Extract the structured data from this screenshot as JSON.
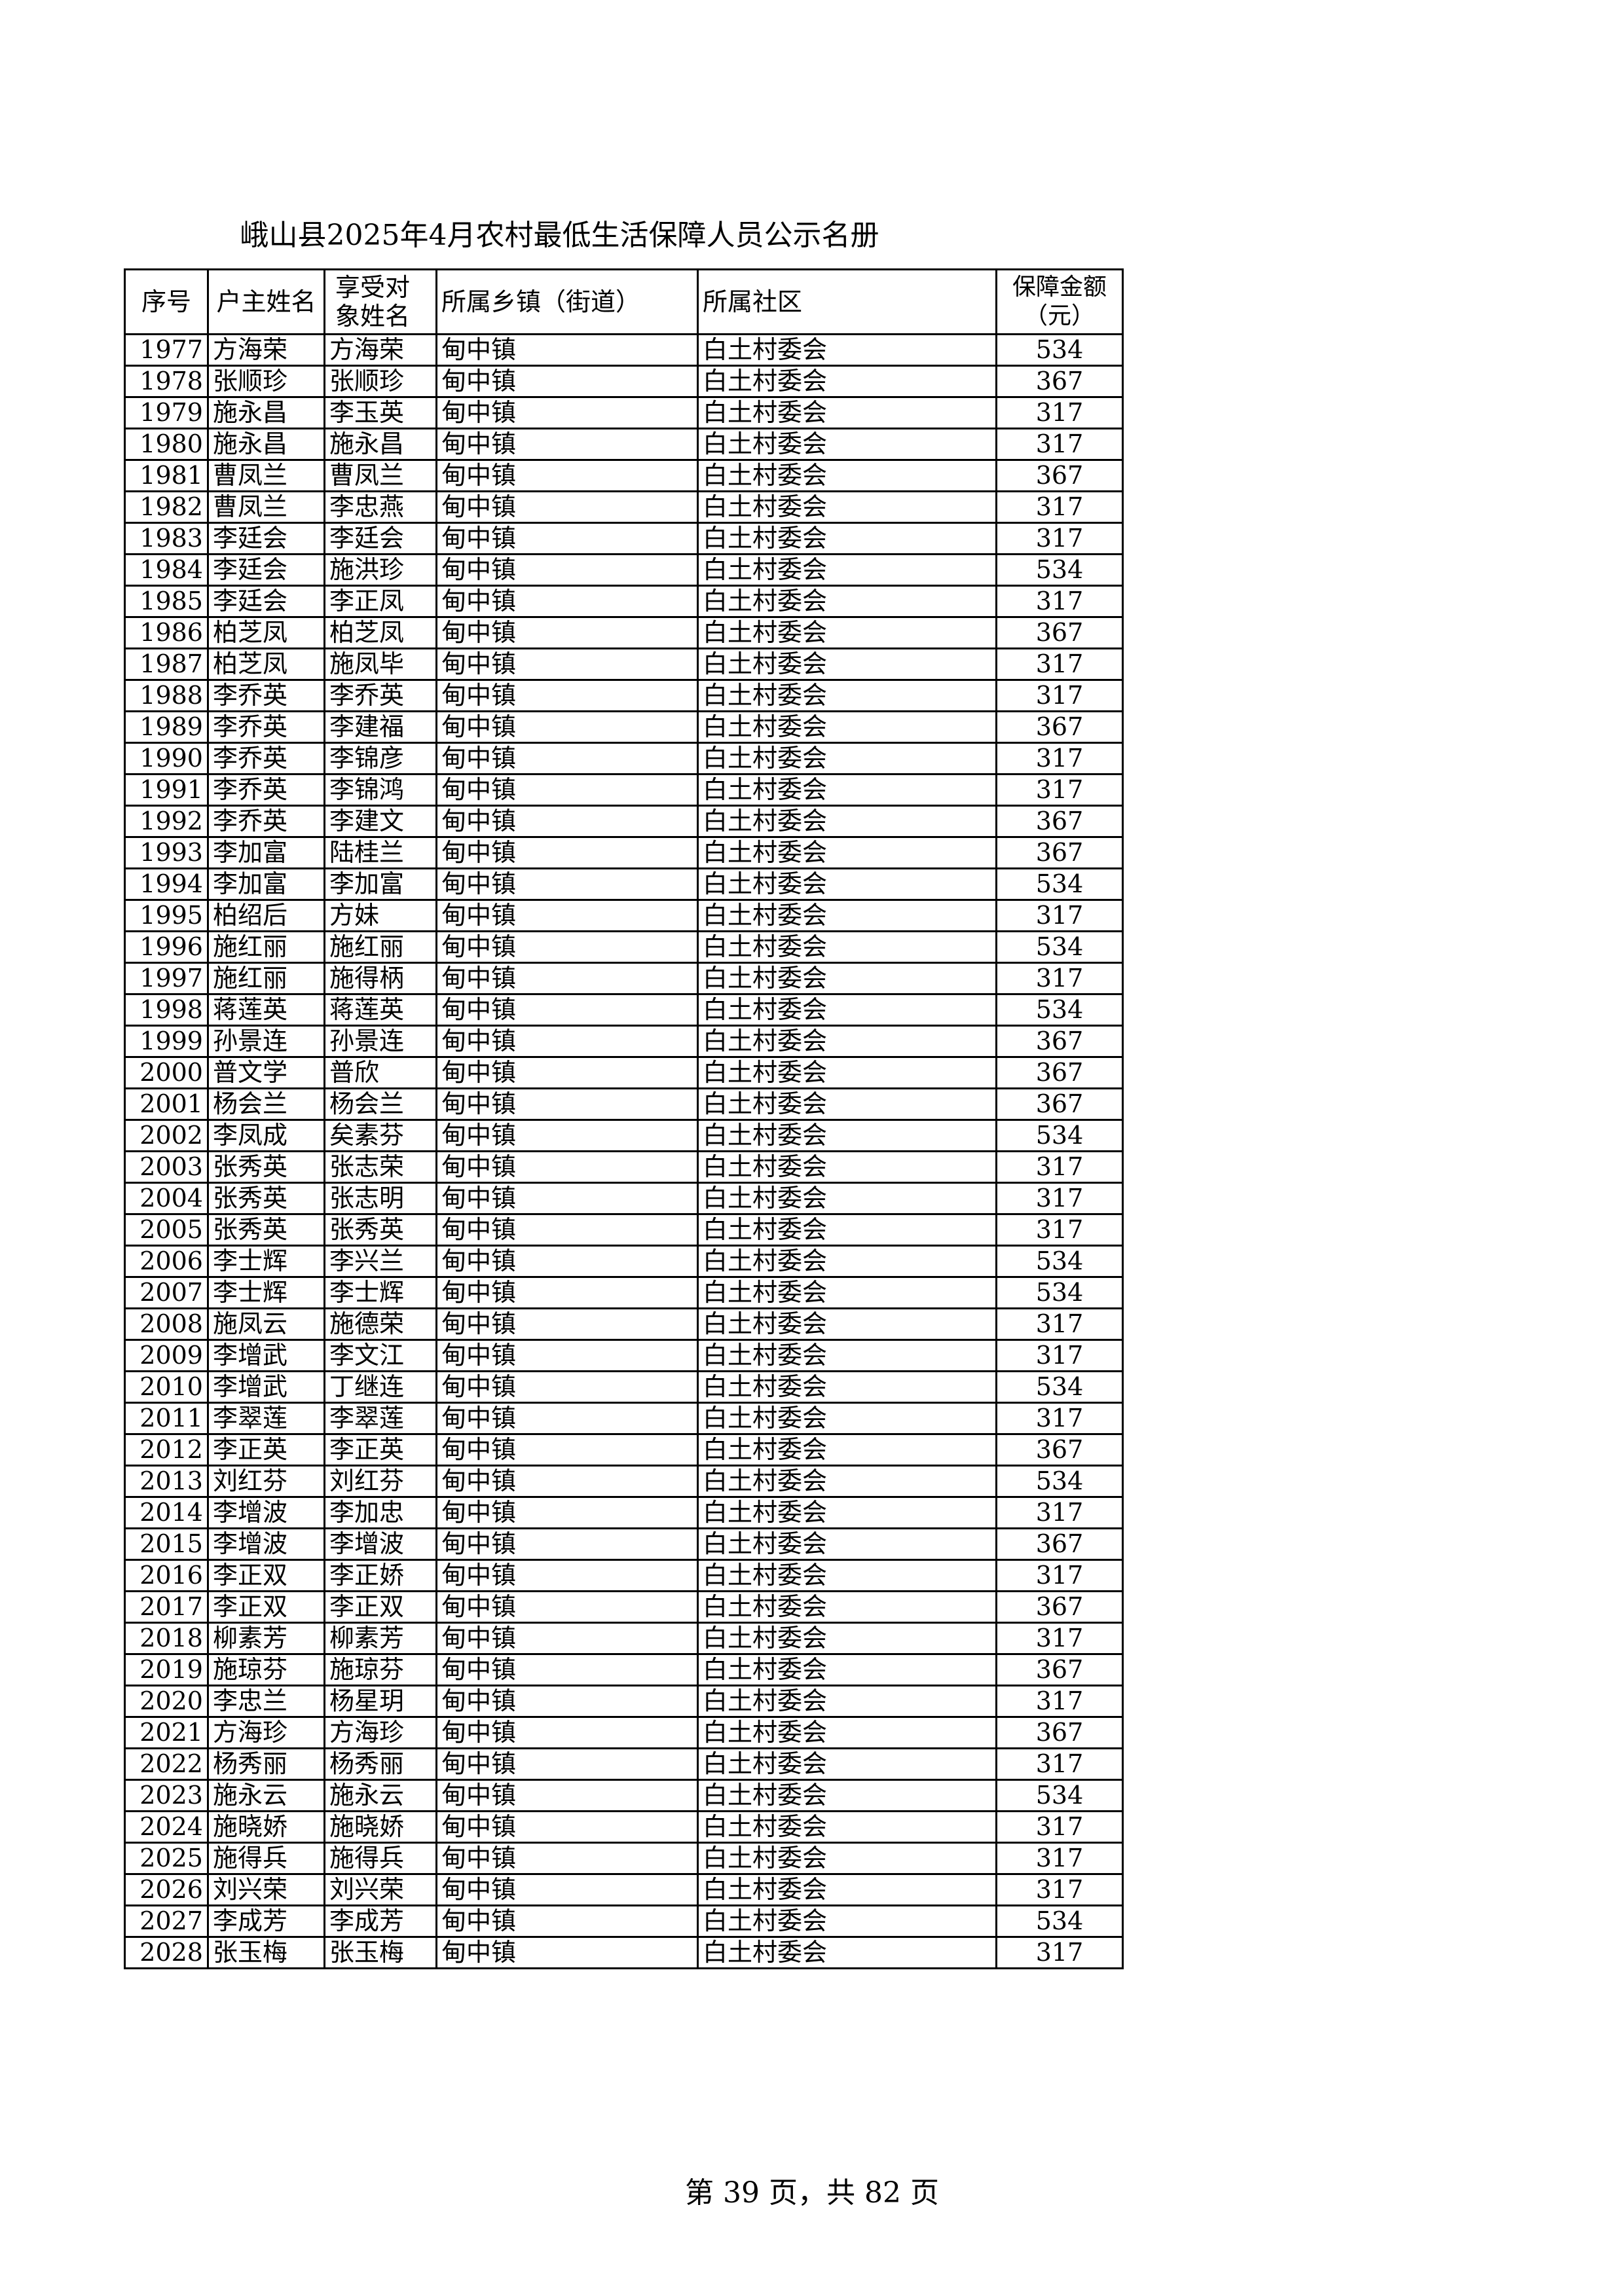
{
  "header": {
    "title": "峨山县2025年4月农村最低生活保障人员公示名册"
  },
  "table": {
    "columns": [
      "序号",
      "户主姓名",
      "享受对象姓名",
      "所属乡镇（街道）",
      "所属社区",
      "保障金额（元）"
    ],
    "rows": [
      [
        1977,
        "方海荣",
        "方海荣",
        "甸中镇",
        "白土村委会",
        534
      ],
      [
        1978,
        "张顺珍",
        "张顺珍",
        "甸中镇",
        "白土村委会",
        367
      ],
      [
        1979,
        "施永昌",
        "李玉英",
        "甸中镇",
        "白土村委会",
        317
      ],
      [
        1980,
        "施永昌",
        "施永昌",
        "甸中镇",
        "白土村委会",
        317
      ],
      [
        1981,
        "曹凤兰",
        "曹凤兰",
        "甸中镇",
        "白土村委会",
        367
      ],
      [
        1982,
        "曹凤兰",
        "李忠燕",
        "甸中镇",
        "白土村委会",
        317
      ],
      [
        1983,
        "李廷会",
        "李廷会",
        "甸中镇",
        "白土村委会",
        317
      ],
      [
        1984,
        "李廷会",
        "施洪珍",
        "甸中镇",
        "白土村委会",
        534
      ],
      [
        1985,
        "李廷会",
        "李正凤",
        "甸中镇",
        "白土村委会",
        317
      ],
      [
        1986,
        "柏芝凤",
        "柏芝凤",
        "甸中镇",
        "白土村委会",
        367
      ],
      [
        1987,
        "柏芝凤",
        "施凤毕",
        "甸中镇",
        "白土村委会",
        317
      ],
      [
        1988,
        "李乔英",
        "李乔英",
        "甸中镇",
        "白土村委会",
        317
      ],
      [
        1989,
        "李乔英",
        "李建福",
        "甸中镇",
        "白土村委会",
        367
      ],
      [
        1990,
        "李乔英",
        "李锦彦",
        "甸中镇",
        "白土村委会",
        317
      ],
      [
        1991,
        "李乔英",
        "李锦鸿",
        "甸中镇",
        "白土村委会",
        317
      ],
      [
        1992,
        "李乔英",
        "李建文",
        "甸中镇",
        "白土村委会",
        367
      ],
      [
        1993,
        "李加富",
        "陆桂兰",
        "甸中镇",
        "白土村委会",
        367
      ],
      [
        1994,
        "李加富",
        "李加富",
        "甸中镇",
        "白土村委会",
        534
      ],
      [
        1995,
        "柏绍后",
        "方妹",
        "甸中镇",
        "白土村委会",
        317
      ],
      [
        1996,
        "施红丽",
        "施红丽",
        "甸中镇",
        "白土村委会",
        534
      ],
      [
        1997,
        "施红丽",
        "施得柄",
        "甸中镇",
        "白土村委会",
        317
      ],
      [
        1998,
        "蒋莲英",
        "蒋莲英",
        "甸中镇",
        "白土村委会",
        534
      ],
      [
        1999,
        "孙景连",
        "孙景连",
        "甸中镇",
        "白土村委会",
        367
      ],
      [
        2000,
        "普文学",
        "普欣",
        "甸中镇",
        "白土村委会",
        367
      ],
      [
        2001,
        "杨会兰",
        "杨会兰",
        "甸中镇",
        "白土村委会",
        367
      ],
      [
        2002,
        "李凤成",
        "矣素芬",
        "甸中镇",
        "白土村委会",
        534
      ],
      [
        2003,
        "张秀英",
        "张志荣",
        "甸中镇",
        "白土村委会",
        317
      ],
      [
        2004,
        "张秀英",
        "张志明",
        "甸中镇",
        "白土村委会",
        317
      ],
      [
        2005,
        "张秀英",
        "张秀英",
        "甸中镇",
        "白土村委会",
        317
      ],
      [
        2006,
        "李士辉",
        "李兴兰",
        "甸中镇",
        "白土村委会",
        534
      ],
      [
        2007,
        "李士辉",
        "李士辉",
        "甸中镇",
        "白土村委会",
        534
      ],
      [
        2008,
        "施凤云",
        "施德荣",
        "甸中镇",
        "白土村委会",
        317
      ],
      [
        2009,
        "李增武",
        "李文江",
        "甸中镇",
        "白土村委会",
        317
      ],
      [
        2010,
        "李增武",
        "丁继连",
        "甸中镇",
        "白土村委会",
        534
      ],
      [
        2011,
        "李翠莲",
        "李翠莲",
        "甸中镇",
        "白土村委会",
        317
      ],
      [
        2012,
        "李正英",
        "李正英",
        "甸中镇",
        "白土村委会",
        367
      ],
      [
        2013,
        "刘红芬",
        "刘红芬",
        "甸中镇",
        "白土村委会",
        534
      ],
      [
        2014,
        "李增波",
        "李加忠",
        "甸中镇",
        "白土村委会",
        317
      ],
      [
        2015,
        "李增波",
        "李增波",
        "甸中镇",
        "白土村委会",
        367
      ],
      [
        2016,
        "李正双",
        "李正娇",
        "甸中镇",
        "白土村委会",
        317
      ],
      [
        2017,
        "李正双",
        "李正双",
        "甸中镇",
        "白土村委会",
        367
      ],
      [
        2018,
        "柳素芳",
        "柳素芳",
        "甸中镇",
        "白土村委会",
        317
      ],
      [
        2019,
        "施琼芬",
        "施琼芬",
        "甸中镇",
        "白土村委会",
        367
      ],
      [
        2020,
        "李忠兰",
        "杨星玥",
        "甸中镇",
        "白土村委会",
        317
      ],
      [
        2021,
        "方海珍",
        "方海珍",
        "甸中镇",
        "白土村委会",
        367
      ],
      [
        2022,
        "杨秀丽",
        "杨秀丽",
        "甸中镇",
        "白土村委会",
        317
      ],
      [
        2023,
        "施永云",
        "施永云",
        "甸中镇",
        "白土村委会",
        534
      ],
      [
        2024,
        "施晓娇",
        "施晓娇",
        "甸中镇",
        "白土村委会",
        317
      ],
      [
        2025,
        "施得兵",
        "施得兵",
        "甸中镇",
        "白土村委会",
        317
      ],
      [
        2026,
        "刘兴荣",
        "刘兴荣",
        "甸中镇",
        "白土村委会",
        317
      ],
      [
        2027,
        "李成芳",
        "李成芳",
        "甸中镇",
        "白土村委会",
        534
      ],
      [
        2028,
        "张玉梅",
        "张玉梅",
        "甸中镇",
        "白土村委会",
        317
      ]
    ]
  },
  "footer": {
    "page": "第 39 页，共 82 页"
  }
}
